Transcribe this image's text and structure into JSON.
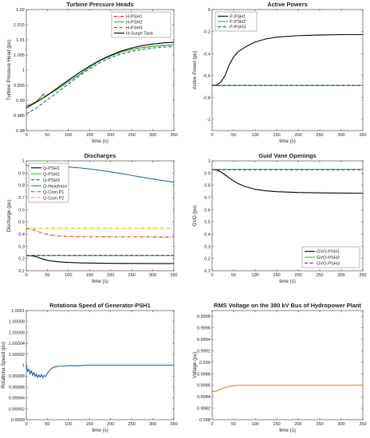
{
  "chart_data": [
    {
      "type": "line",
      "title": "Turbine Pressure Heads",
      "xlabel": "time (s)",
      "ylabel": "Turbine Pressure Head (pu)",
      "xlim": [
        0,
        350
      ],
      "ylim": [
        0.98,
        1.02
      ],
      "xticks": [
        0,
        50,
        100,
        150,
        200,
        250,
        300,
        350
      ],
      "yticks": [
        0.98,
        0.985,
        0.99,
        0.995,
        1,
        1.005,
        1.01,
        1.015,
        1.02
      ],
      "ytick_labels": [
        "0.98",
        "0.985",
        "0.99",
        "0.995",
        "1",
        "1.005",
        "1.01",
        "1.015",
        "1.02"
      ],
      "legend_position": "top-right",
      "grid": false,
      "series": [
        {
          "name": "H-PSH1",
          "color": "#ff0000",
          "style": "dashdot",
          "x": [
            0,
            10,
            20,
            30,
            40,
            45,
            50,
            55,
            60,
            70,
            80,
            100,
            125,
            150,
            175,
            200,
            225,
            250,
            275,
            300,
            325,
            350
          ],
          "y": [
            0.9882,
            0.9887,
            0.9893,
            0.9905,
            0.9921,
            0.9913,
            0.9918,
            0.9922,
            0.9926,
            0.9934,
            0.9943,
            0.9962,
            0.9985,
            1.001,
            1.0032,
            1.0047,
            1.006,
            1.0069,
            1.0075,
            1.0079,
            1.0082,
            1.0084
          ]
        },
        {
          "name": "H-PSH2",
          "color": "#22cc22",
          "style": "solid",
          "x": [
            0,
            10,
            20,
            30,
            40,
            45,
            50,
            55,
            60,
            70,
            80,
            100,
            125,
            150,
            175,
            200,
            225,
            250,
            275,
            300,
            325,
            350
          ],
          "y": [
            0.9881,
            0.9886,
            0.9892,
            0.9904,
            0.9919,
            0.9912,
            0.9917,
            0.9921,
            0.9925,
            0.9933,
            0.9942,
            0.9961,
            0.9984,
            1.0009,
            1.0031,
            1.0046,
            1.0059,
            1.0068,
            1.0074,
            1.0078,
            1.0081,
            1.0083
          ]
        },
        {
          "name": "H-PSH3",
          "color": "#1a5fb4",
          "style": "dashed",
          "x": [
            0,
            10,
            25,
            50,
            75,
            100,
            125,
            150,
            175,
            200,
            225,
            250,
            275,
            300,
            325,
            350
          ],
          "y": [
            0.9855,
            0.9863,
            0.9876,
            0.9902,
            0.9928,
            0.9954,
            0.998,
            1.0004,
            1.0025,
            1.0041,
            1.0053,
            1.0062,
            1.0068,
            1.0073,
            1.0076,
            1.0078
          ]
        },
        {
          "name": "H-Surge Tank",
          "color": "#000000",
          "style": "solid",
          "x": [
            0,
            25,
            50,
            75,
            100,
            125,
            150,
            175,
            200,
            225,
            250,
            275,
            300,
            325,
            350
          ],
          "y": [
            0.9875,
            0.9895,
            0.9917,
            0.9942,
            0.9967,
            0.9991,
            1.0013,
            1.0033,
            1.0049,
            1.0063,
            1.0073,
            1.0081,
            1.0086,
            1.009,
            1.0092
          ]
        }
      ]
    },
    {
      "type": "line",
      "title": "Active Powers",
      "xlabel": "time (s)",
      "ylabel": "Active Power (pu)",
      "xlim": [
        0,
        350
      ],
      "ylim": [
        -1.1,
        0
      ],
      "xticks": [
        0,
        50,
        100,
        150,
        200,
        250,
        300,
        350
      ],
      "yticks": [
        -1,
        -0.8,
        -0.6,
        -0.4,
        -0.2,
        0
      ],
      "ytick_labels": [
        "-1",
        "-0.8",
        "-0.6",
        "-0.4",
        "-0.2",
        "0"
      ],
      "legend_position": "top-left",
      "grid": false,
      "series": [
        {
          "name": "P-PSH1",
          "color": "#000000",
          "style": "solid",
          "x": [
            0,
            10,
            20,
            30,
            40,
            50,
            60,
            75,
            100,
            125,
            150,
            200,
            250,
            300,
            350
          ],
          "y": [
            -0.69,
            -0.685,
            -0.66,
            -0.6,
            -0.5,
            -0.43,
            -0.385,
            -0.345,
            -0.295,
            -0.267,
            -0.25,
            -0.237,
            -0.231,
            -0.228,
            -0.227
          ]
        },
        {
          "name": "P-PSH2",
          "color": "#22cc22",
          "style": "solid",
          "x": [
            0,
            50,
            100,
            150,
            200,
            250,
            300,
            350
          ],
          "y": [
            -0.69,
            -0.69,
            -0.69,
            -0.69,
            -0.69,
            -0.69,
            -0.69,
            -0.69
          ]
        },
        {
          "name": "P-PSH3",
          "color": "#1a3a8a",
          "style": "dashed",
          "x": [
            0,
            50,
            100,
            150,
            200,
            250,
            300,
            350
          ],
          "y": [
            -0.69,
            -0.69,
            -0.69,
            -0.69,
            -0.69,
            -0.69,
            -0.69,
            -0.69
          ]
        }
      ]
    },
    {
      "type": "line",
      "title": "Discharges",
      "xlabel": "time (s)",
      "ylabel": "Discharge (pu)",
      "xlim": [
        0,
        350
      ],
      "ylim": [
        0.1,
        1
      ],
      "xticks": [
        0,
        50,
        100,
        150,
        200,
        250,
        300,
        350
      ],
      "yticks": [
        0.1,
        0.2,
        0.3,
        0.4,
        0.5,
        0.6,
        0.7,
        0.8,
        0.9,
        1
      ],
      "ytick_labels": [
        "0.1",
        "0.2",
        "0.3",
        "0.4",
        "0.5",
        "0.6",
        "0.7",
        "0.8",
        "0.9",
        "1"
      ],
      "legend_position": "top-left",
      "grid": false,
      "series": [
        {
          "name": "Q-PSH1",
          "color": "#000000",
          "style": "solid",
          "x": [
            0,
            10,
            20,
            30,
            40,
            50,
            60,
            75,
            100,
            125,
            150,
            200,
            250,
            300,
            350
          ],
          "y": [
            0.225,
            0.223,
            0.218,
            0.207,
            0.195,
            0.186,
            0.18,
            0.174,
            0.168,
            0.165,
            0.163,
            0.161,
            0.16,
            0.159,
            0.159
          ]
        },
        {
          "name": "Q-PSH2",
          "color": "#22cc22",
          "style": "solid",
          "x": [
            0,
            50,
            100,
            150,
            200,
            250,
            300,
            350
          ],
          "y": [
            0.225,
            0.225,
            0.225,
            0.225,
            0.225,
            0.225,
            0.225,
            0.225
          ]
        },
        {
          "name": "Q-PSH3",
          "color": "#1a3a8a",
          "style": "dashed",
          "x": [
            0,
            50,
            100,
            150,
            200,
            250,
            300,
            350
          ],
          "y": [
            0.225,
            0.225,
            0.225,
            0.225,
            0.225,
            0.225,
            0.225,
            0.225
          ]
        },
        {
          "name": "Q-Headrace",
          "color": "#1a6fb0",
          "style": "solid",
          "x": [
            0,
            25,
            50,
            75,
            100,
            125,
            150,
            175,
            200,
            225,
            250,
            275,
            300,
            325,
            350
          ],
          "y": [
            0.963,
            0.962,
            0.959,
            0.955,
            0.95,
            0.943,
            0.934,
            0.923,
            0.91,
            0.896,
            0.881,
            0.866,
            0.852,
            0.838,
            0.825
          ]
        },
        {
          "name": "Q-Com.P1",
          "color": "#cc3300",
          "style": "dashdot",
          "x": [
            0,
            10,
            20,
            30,
            40,
            50,
            60,
            75,
            100,
            125,
            150,
            200,
            250,
            300,
            350
          ],
          "y": [
            0.445,
            0.442,
            0.432,
            0.418,
            0.406,
            0.398,
            0.392,
            0.387,
            0.382,
            0.38,
            0.379,
            0.378,
            0.378,
            0.377,
            0.377
          ]
        },
        {
          "name": "Q-Com.P2",
          "color": "#e0b000",
          "style": "dashdot",
          "x": [
            0,
            50,
            100,
            150,
            200,
            250,
            300,
            350
          ],
          "y": [
            0.448,
            0.448,
            0.448,
            0.448,
            0.448,
            0.448,
            0.448,
            0.448
          ]
        }
      ]
    },
    {
      "type": "line",
      "title": "Guid Vane Openings",
      "xlabel": "time (s)",
      "ylabel": "GVO (pu)",
      "xlim": [
        0,
        350
      ],
      "ylim": [
        0.1,
        1
      ],
      "xticks": [
        0,
        50,
        100,
        150,
        200,
        250,
        300,
        350
      ],
      "yticks": [
        0.1,
        0.2,
        0.3,
        0.4,
        0.5,
        0.6,
        0.7,
        0.8,
        0.9,
        1
      ],
      "ytick_labels": [
        "0.1",
        "0.2",
        "0.3",
        "0.4",
        "0.5",
        "0.6",
        "0.7",
        "0.8",
        "0.9",
        "1"
      ],
      "legend_position": "bottom-right",
      "grid": false,
      "series": [
        {
          "name": "GVO-PSH1",
          "color": "#000000",
          "style": "solid",
          "x": [
            0,
            10,
            20,
            30,
            40,
            50,
            60,
            75,
            100,
            125,
            150,
            200,
            250,
            300,
            350
          ],
          "y": [
            0.93,
            0.925,
            0.91,
            0.885,
            0.86,
            0.835,
            0.815,
            0.792,
            0.767,
            0.755,
            0.748,
            0.741,
            0.738,
            0.736,
            0.735
          ]
        },
        {
          "name": "GVO-PSH2",
          "color": "#22cc22",
          "style": "solid",
          "x": [
            0,
            50,
            100,
            150,
            200,
            250,
            300,
            350
          ],
          "y": [
            0.93,
            0.93,
            0.93,
            0.93,
            0.93,
            0.93,
            0.93,
            0.93
          ]
        },
        {
          "name": "GVO-PSH3",
          "color": "#1a3a8a",
          "style": "dashed",
          "x": [
            0,
            50,
            100,
            150,
            200,
            250,
            300,
            350
          ],
          "y": [
            0.928,
            0.928,
            0.928,
            0.928,
            0.928,
            0.928,
            0.928,
            0.928
          ]
        }
      ]
    },
    {
      "type": "line",
      "title": "Rotationa Speed of Generator-PSH1",
      "xlabel": "time (s)",
      "ylabel": "Rotationa Speed (pu)",
      "xlim": [
        0,
        350
      ],
      "ylim": [
        0.9999,
        1.0001
      ],
      "xticks": [
        0,
        50,
        100,
        150,
        200,
        250,
        300,
        350
      ],
      "yticks": [
        0.9999,
        0.99992,
        0.99994,
        0.99996,
        0.99998,
        1,
        1.00002,
        1.00004,
        1.00006,
        1.00008,
        1.0001
      ],
      "ytick_labels": [
        "0.9999",
        "0.99992",
        "0.99994",
        "0.99996",
        "0.99998",
        "1",
        "1.00002",
        "1.00004",
        "1.00006",
        "1.00008",
        "1.0001"
      ],
      "grid": false,
      "series": [
        {
          "color": "#1a5fb4",
          "style": "solid",
          "x": [
            0,
            3,
            6,
            9,
            12,
            15,
            18,
            21,
            24,
            27,
            30,
            33,
            36,
            39,
            42,
            45,
            48,
            51,
            54,
            57,
            60,
            65,
            70,
            75,
            80,
            90,
            100,
            110,
            120,
            130,
            140,
            150,
            175,
            200,
            250,
            300,
            350
          ],
          "y": [
            1.0,
            0.999988,
            0.999993,
            0.999984,
            0.99999,
            0.999981,
            0.999987,
            0.999979,
            0.999984,
            0.999977,
            0.999982,
            0.999978,
            0.999983,
            0.999977,
            0.999981,
            0.999979,
            0.999983,
            0.999986,
            0.999989,
            0.999992,
            0.999994,
            0.999996,
            0.999997,
            0.999998,
            0.999998,
            0.999998,
            0.999999,
            0.999999,
            0.999999,
            0.999999,
            1.0,
            1.0,
            1.0,
            1.0,
            1.0,
            1.0,
            1.0
          ]
        }
      ]
    },
    {
      "type": "line",
      "title": "RMS Voltage on the 380 kV Bus of Hydropower Plant",
      "xlabel": "time (s)",
      "ylabel": "Voltage (pu)",
      "xlim": [
        0,
        350
      ],
      "ylim": [
        0.998,
        0.9999
      ],
      "xticks": [
        0,
        50,
        100,
        150,
        200,
        250,
        300,
        350
      ],
      "yticks": [
        0.998,
        0.9982,
        0.9984,
        0.9986,
        0.9988,
        0.999,
        0.9992,
        0.9994,
        0.9996,
        0.9998
      ],
      "ytick_labels": [
        "0.998",
        "0.9982",
        "0.9984",
        "0.9986",
        "0.9988",
        "0.999",
        "0.9992",
        "0.9994",
        "0.9996",
        "0.9998"
      ],
      "grid": false,
      "series": [
        {
          "color": "#c8842a",
          "style": "solid",
          "x": [
            0,
            10,
            20,
            30,
            40,
            50,
            60,
            75,
            100,
            150,
            200,
            250,
            300,
            350
          ],
          "y": [
            0.99849,
            0.9985,
            0.99853,
            0.99856,
            0.99858,
            0.99859,
            0.9986,
            0.9986,
            0.9986,
            0.9986,
            0.9986,
            0.9986,
            0.9986,
            0.9986
          ]
        }
      ]
    }
  ]
}
